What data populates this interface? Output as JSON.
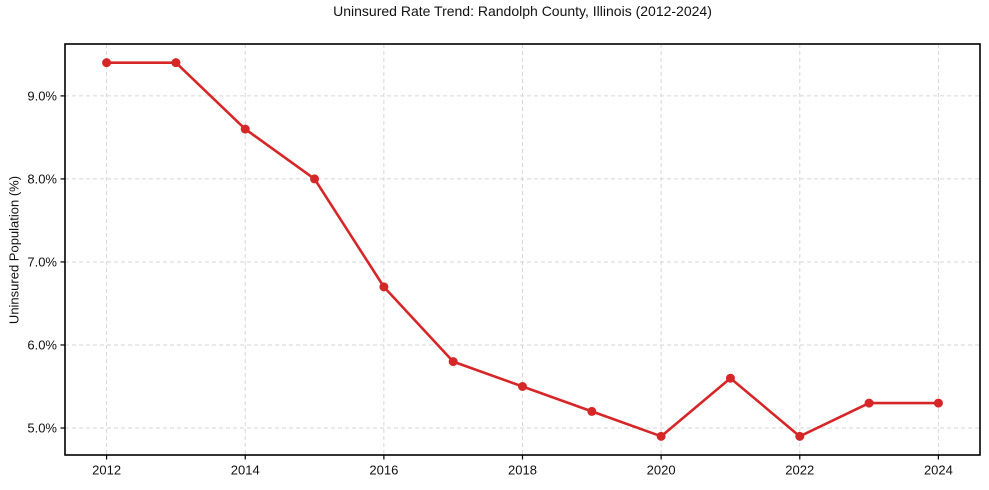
{
  "figure": {
    "title": "Uninsured Rate Trend: Randolph County, Illinois (2012-2024)",
    "y_axis_label": "Uninsured Population (%)"
  },
  "chart_data": {
    "type": "line",
    "title": "Uninsured Rate Trend: Randolph County, Illinois (2012-2024)",
    "xlabel": "",
    "ylabel": "Uninsured Population (%)",
    "x": [
      2012,
      2013,
      2014,
      2015,
      2016,
      2017,
      2018,
      2019,
      2020,
      2021,
      2022,
      2023,
      2024
    ],
    "values": [
      9.4,
      9.4,
      8.6,
      8.0,
      6.7,
      5.8,
      5.5,
      5.2,
      4.9,
      5.6,
      4.9,
      5.3,
      5.3
    ],
    "x_ticks": [
      2012,
      2014,
      2016,
      2018,
      2020,
      2022,
      2024
    ],
    "x_tick_labels": [
      "2012",
      "2014",
      "2016",
      "2018",
      "2020",
      "2022",
      "2024"
    ],
    "y_ticks": [
      5.0,
      6.0,
      7.0,
      8.0,
      9.0
    ],
    "y_tick_labels": [
      "5.0%",
      "6.0%",
      "7.0%",
      "8.0%",
      "9.0%"
    ],
    "xlim": [
      2011.4,
      2024.6
    ],
    "ylim": [
      4.675,
      9.625
    ],
    "grid": true,
    "grid_style": "dashed",
    "grid_color": "#d6d6d6",
    "line_color": "#d62728",
    "marker": "circle",
    "legend": "none"
  }
}
